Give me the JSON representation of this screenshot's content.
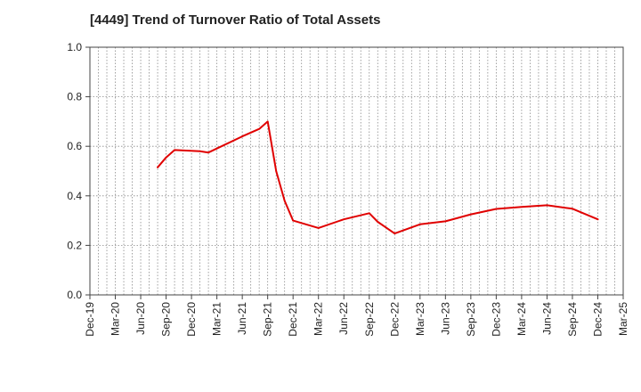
{
  "chart_data": {
    "type": "line",
    "title": "[4449]  Trend of Turnover Ratio of Total Assets",
    "xlabel": "",
    "ylabel": "",
    "ylim": [
      0.0,
      1.0
    ],
    "yticks": [
      "0.0",
      "0.2",
      "0.4",
      "0.6",
      "0.8",
      "1.0"
    ],
    "xticks": [
      "Dec-19",
      "Mar-20",
      "Jun-20",
      "Sep-20",
      "Dec-20",
      "Mar-21",
      "Jun-21",
      "Sep-21",
      "Dec-21",
      "Mar-22",
      "Jun-22",
      "Sep-22",
      "Dec-22",
      "Mar-23",
      "Jun-23",
      "Sep-23",
      "Dec-23",
      "Mar-24",
      "Jun-24",
      "Sep-24",
      "Dec-24",
      "Mar-25"
    ],
    "grid": true,
    "legend": "none",
    "series": [
      {
        "color": "#e00000",
        "points": [
          {
            "x": "Aug-20",
            "y": 0.515
          },
          {
            "x": "Sep-20",
            "y": 0.555
          },
          {
            "x": "Oct-20",
            "y": 0.585
          },
          {
            "x": "Jan-21",
            "y": 0.58
          },
          {
            "x": "Feb-21",
            "y": 0.575
          },
          {
            "x": "Jun-21",
            "y": 0.64
          },
          {
            "x": "Aug-21",
            "y": 0.67
          },
          {
            "x": "Sep-21",
            "y": 0.7
          },
          {
            "x": "Oct-21",
            "y": 0.5
          },
          {
            "x": "Nov-21",
            "y": 0.38
          },
          {
            "x": "Dec-21",
            "y": 0.3
          },
          {
            "x": "Mar-22",
            "y": 0.27
          },
          {
            "x": "Jun-22",
            "y": 0.305
          },
          {
            "x": "Sep-22",
            "y": 0.33
          },
          {
            "x": "Oct-22",
            "y": 0.295
          },
          {
            "x": "Dec-22",
            "y": 0.248
          },
          {
            "x": "Mar-23",
            "y": 0.285
          },
          {
            "x": "Jun-23",
            "y": 0.297
          },
          {
            "x": "Sep-23",
            "y": 0.325
          },
          {
            "x": "Dec-23",
            "y": 0.347
          },
          {
            "x": "Mar-24",
            "y": 0.355
          },
          {
            "x": "Jun-24",
            "y": 0.362
          },
          {
            "x": "Sep-24",
            "y": 0.348
          },
          {
            "x": "Dec-24",
            "y": 0.305
          }
        ]
      }
    ]
  }
}
